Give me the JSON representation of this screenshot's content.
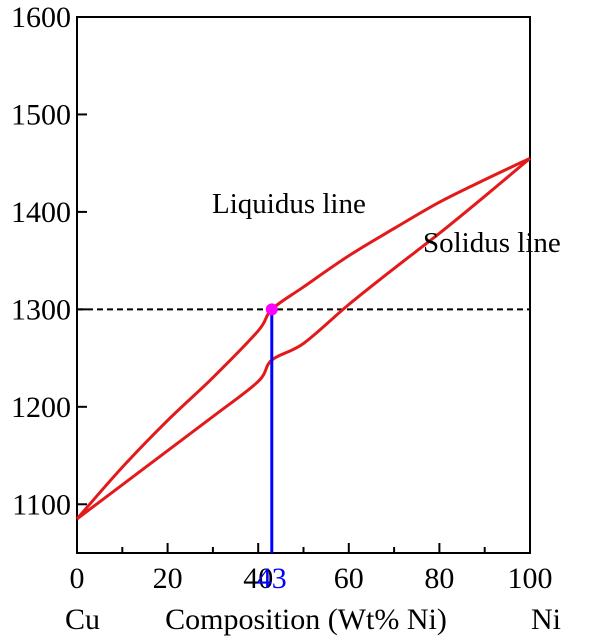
{
  "chart_data": {
    "type": "line",
    "title": "",
    "xlabel": "Composition (Wt% Ni)",
    "ylabel": "",
    "xlim": [
      0,
      100
    ],
    "ylim": [
      1050,
      1600
    ],
    "x_ticks": [
      0,
      20,
      40,
      60,
      80,
      100
    ],
    "x_minor_ticks": [
      10,
      30,
      50,
      70,
      90
    ],
    "y_ticks": [
      1100,
      1200,
      1300,
      1400,
      1500,
      1600
    ],
    "end_labels": {
      "left": "Cu",
      "right": "Ni"
    },
    "grid": false,
    "series": [
      {
        "name": "Liquidus line",
        "color": "#e31a1c",
        "x": [
          0,
          10,
          20,
          30,
          40,
          43,
          50,
          60,
          70,
          80,
          90,
          100
        ],
        "y": [
          1085,
          1138,
          1186,
          1230,
          1278,
          1300,
          1323,
          1355,
          1383,
          1410,
          1433,
          1455
        ]
      },
      {
        "name": "Solidus line",
        "color": "#e31a1c",
        "x": [
          0,
          10,
          20,
          30,
          40,
          43,
          50,
          60,
          70,
          80,
          90,
          100
        ],
        "y": [
          1085,
          1120,
          1155,
          1190,
          1226,
          1248,
          1265,
          1305,
          1342,
          1378,
          1416,
          1455
        ]
      }
    ],
    "annotations": {
      "liquidus_label": "Liquidus line",
      "solidus_label": "Solidus line",
      "isotherm_y": 1300,
      "isotherm_color": "#000000",
      "marker": {
        "x": 43,
        "y": 1300,
        "label": "43",
        "point_color": "#ff00ff",
        "line_color": "#0000ff"
      }
    }
  }
}
